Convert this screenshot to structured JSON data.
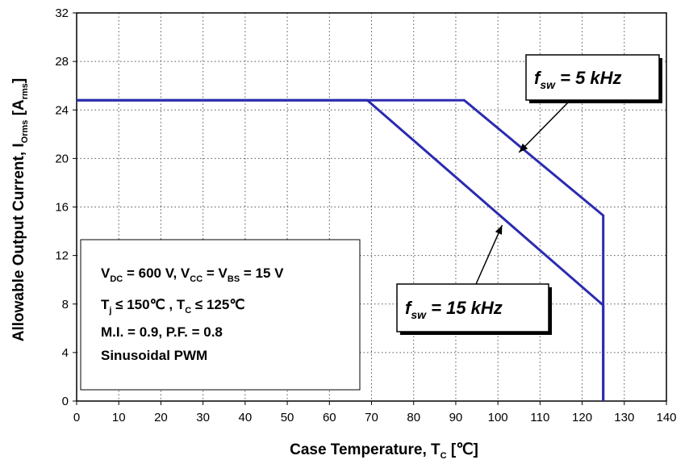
{
  "chart_data": {
    "type": "line",
    "xlabel": {
      "main": "Case Temperature, T",
      "sub": "C",
      "unit": " [℃]"
    },
    "ylabel": {
      "main": "Allowable Output Current, I",
      "sub": "Orms",
      "open": " [A",
      "unit_sub": "rms",
      "close": "]"
    },
    "xlim": [
      0,
      140
    ],
    "ylim": [
      0,
      32
    ],
    "x_ticks": [
      0,
      10,
      20,
      30,
      40,
      50,
      60,
      70,
      80,
      90,
      100,
      110,
      120,
      130,
      140
    ],
    "y_ticks": [
      0,
      4,
      8,
      12,
      16,
      20,
      24,
      28,
      32
    ],
    "grid": true,
    "line_color": "#2b2bb0",
    "series": [
      {
        "name": "5 kHz",
        "points": [
          [
            0,
            24.8
          ],
          [
            92,
            24.8
          ],
          [
            125,
            15.3
          ],
          [
            125,
            0
          ]
        ]
      },
      {
        "name": "15 kHz",
        "points": [
          [
            0,
            24.8
          ],
          [
            69,
            24.8
          ],
          [
            125,
            7.9
          ],
          [
            125,
            0
          ]
        ]
      }
    ],
    "annotations": [
      {
        "label_main": "f",
        "label_sub": "sw",
        "label_rest": " = 5 kHz",
        "arrow_to": [
          105,
          20.5
        ]
      },
      {
        "label_main": "f",
        "label_sub": "sw",
        "label_rest": " = 15 kHz",
        "arrow_to": [
          101,
          14.5
        ]
      }
    ],
    "conditions": [
      {
        "parts": [
          [
            "V",
            ""
          ],
          [
            "DC",
            "sub"
          ],
          [
            " = 600 V, V",
            ""
          ],
          [
            "CC",
            "sub"
          ],
          [
            " = V",
            ""
          ],
          [
            "BS",
            "sub"
          ],
          [
            " = 15 V",
            ""
          ]
        ]
      },
      {
        "parts": [
          [
            "T",
            ""
          ],
          [
            "j",
            "sub"
          ],
          [
            " ≤ 150℃  , T",
            ""
          ],
          [
            "C",
            "sub"
          ],
          [
            " ≤ 125℃",
            ""
          ]
        ]
      },
      {
        "parts": [
          [
            "M.I. = 0.9, P.F. = 0.8",
            ""
          ]
        ]
      },
      {
        "parts": [
          [
            "Sinusoidal PWM",
            ""
          ]
        ]
      }
    ]
  }
}
